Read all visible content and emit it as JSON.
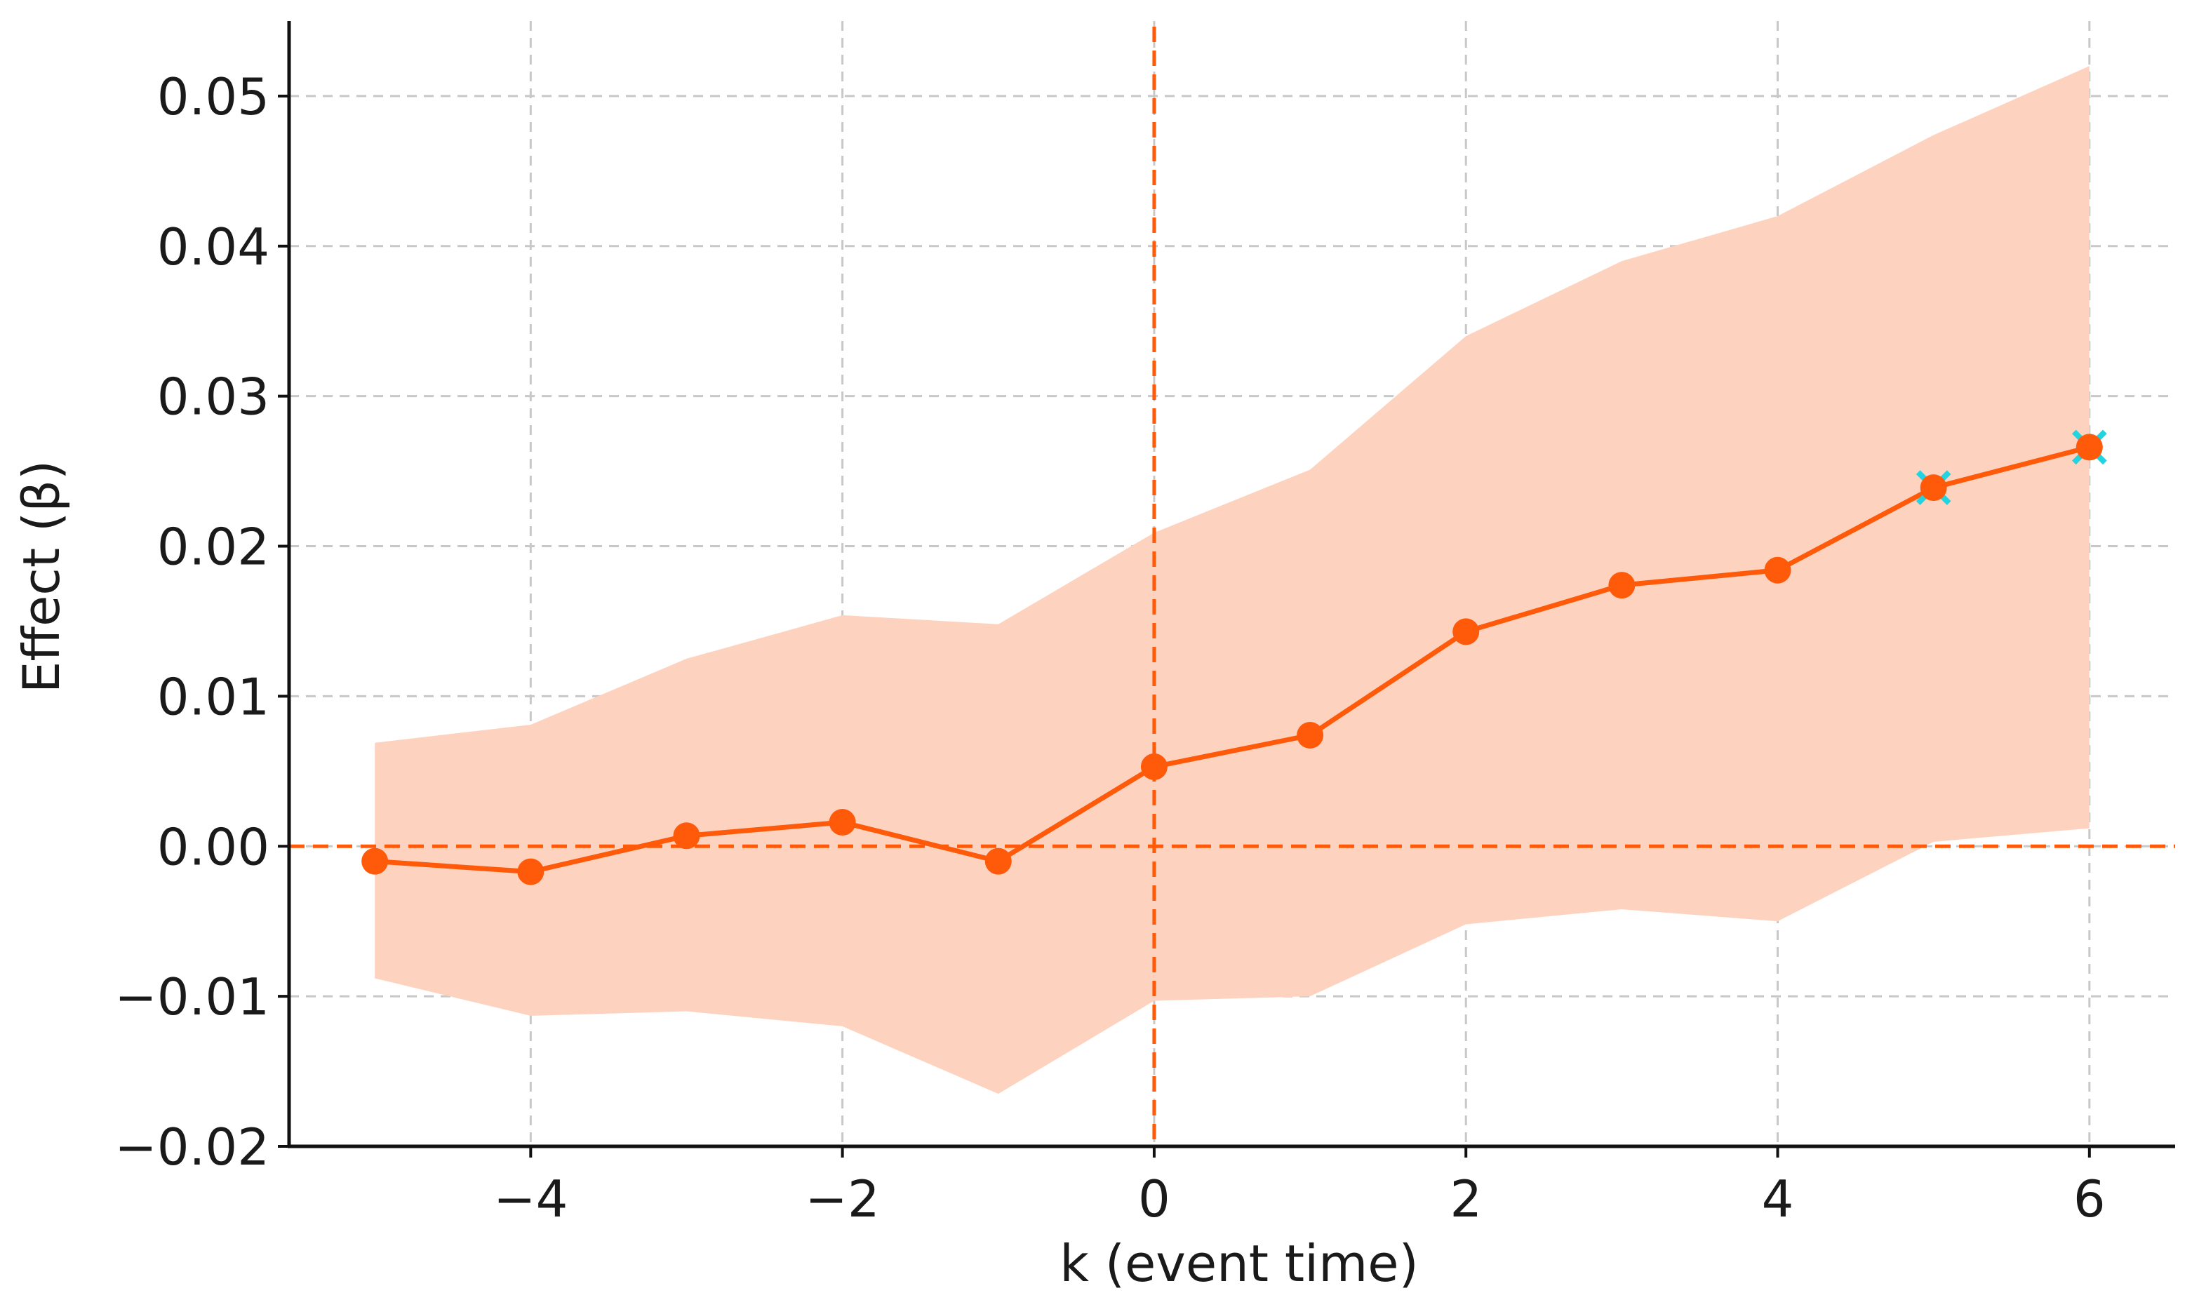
{
  "chart_data": {
    "type": "line",
    "title": "",
    "xlabel": "k (event time)",
    "ylabel": "Effect (β)",
    "xlim": [
      -5.55,
      6.55
    ],
    "ylim": [
      -0.02,
      0.055
    ],
    "xticks": [
      -4,
      -2,
      0,
      2,
      4,
      6
    ],
    "xtick_labels": [
      "−4",
      "−2",
      "0",
      "2",
      "4",
      "6"
    ],
    "yticks": [
      -0.02,
      -0.01,
      0.0,
      0.01,
      0.02,
      0.03,
      0.04,
      0.05
    ],
    "ytick_labels": [
      "−0.02",
      "−0.01",
      "0.00",
      "0.01",
      "0.02",
      "0.03",
      "0.04",
      "0.05"
    ],
    "grid": true,
    "reference_lines": {
      "x": 0,
      "y": 0
    },
    "series": [
      {
        "x": [
          -5,
          -4,
          -3,
          -2,
          -1,
          0,
          1,
          2,
          3,
          4,
          5,
          6
        ],
        "y": [
          -0.001,
          -0.0017,
          0.0007,
          0.0016,
          -0.001,
          0.0053,
          0.0074,
          0.0143,
          0.0174,
          0.0184,
          0.0239,
          0.0266
        ],
        "ci_lower": [
          -0.0088,
          -0.0113,
          -0.011,
          -0.012,
          -0.0165,
          -0.0103,
          -0.01,
          -0.0052,
          -0.0042,
          -0.005,
          0.0003,
          0.0012
        ],
        "ci_upper": [
          0.0069,
          0.0081,
          0.0125,
          0.0154,
          0.0148,
          0.0209,
          0.0251,
          0.034,
          0.039,
          0.042,
          0.0474,
          0.052
        ],
        "highlighted_x": [
          5,
          6
        ]
      }
    ],
    "colors": {
      "line": "#ff5a0a",
      "band": "#fdd3c0",
      "reference": "#ff5a0a",
      "highlight_marker": "#22d3e0"
    }
  }
}
